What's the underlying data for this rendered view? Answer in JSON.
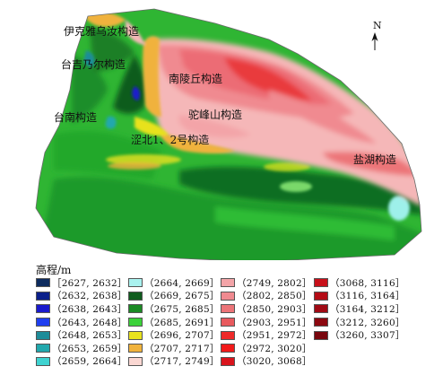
{
  "map": {
    "labels": [
      {
        "id": "yikeyawuru",
        "text": "伊克雅乌汝构造"
      },
      {
        "id": "taijinaier",
        "text": "台吉乃尔构造"
      },
      {
        "id": "nanlingqiu",
        "text": "南陵丘构造"
      },
      {
        "id": "tainan",
        "text": "台南构造"
      },
      {
        "id": "tuofengshan",
        "text": "驼峰山构造"
      },
      {
        "id": "sebei",
        "text": "涩北1、2号构造"
      },
      {
        "id": "yanhu",
        "text": "盐湖构造"
      }
    ],
    "north_label": "N"
  },
  "legend": {
    "title": "高程/m",
    "items": [
      {
        "label": "［2627, 2632］",
        "color": "#0d2b5e"
      },
      {
        "label": "（2632, 2638］",
        "color": "#0a1f8a"
      },
      {
        "label": "（2638, 2643］",
        "color": "#1a1acc"
      },
      {
        "label": "（2643, 2648］",
        "color": "#1f3ff0"
      },
      {
        "label": "（2648, 2653］",
        "color": "#1e8c99"
      },
      {
        "label": "（2653, 2659］",
        "color": "#21a8ad"
      },
      {
        "label": "（2659, 2664］",
        "color": "#3fd3d1"
      },
      {
        "label": "（2664, 2669］",
        "color": "#a9f2ef"
      },
      {
        "label": "（2669, 2675］",
        "color": "#0f5c1e"
      },
      {
        "label": "（2675, 2685］",
        "color": "#1b8a24"
      },
      {
        "label": "（2685, 2691］",
        "color": "#3bd23a"
      },
      {
        "label": "（2696, 2707］",
        "color": "#e8e21e"
      },
      {
        "label": "（2707, 2717］",
        "color": "#f0b23c"
      },
      {
        "label": "（2717, 2749］",
        "color": "#fad7d2"
      },
      {
        "label": "（2749, 2802］",
        "color": "#f3a4a8"
      },
      {
        "label": "（2802, 2850］",
        "color": "#f08a90"
      },
      {
        "label": "（2850, 2903］",
        "color": "#ec7478"
      },
      {
        "label": "（2903, 2951］",
        "color": "#e85a5e"
      },
      {
        "label": "（2951, 2972］",
        "color": "#ee2a2a"
      },
      {
        "label": "（2972, 3020］",
        "color": "#f21a1a"
      },
      {
        "label": "（3020, 3068］",
        "color": "#d9141c"
      },
      {
        "label": "（3068, 3116］",
        "color": "#c8101a"
      },
      {
        "label": "（3116, 3164］",
        "color": "#b40c16"
      },
      {
        "label": "（3164, 3212］",
        "color": "#a00a14"
      },
      {
        "label": "（3212, 3260］",
        "color": "#8c0810"
      },
      {
        "label": "（3260, 3307］",
        "color": "#78060d"
      }
    ]
  }
}
